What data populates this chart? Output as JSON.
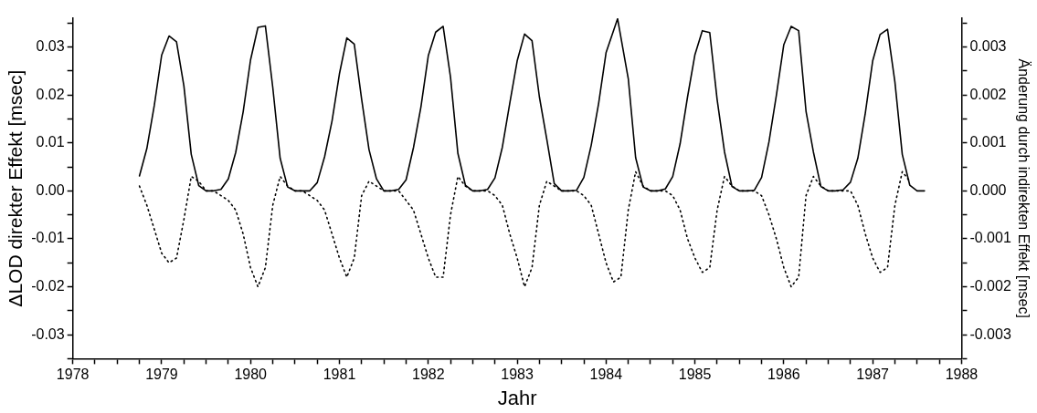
{
  "chart_data": {
    "type": "line",
    "xlabel": "Jahr",
    "ylabel": "ΔLOD direkter Effekt [msec]",
    "y2label": "Änderung durch indirekten Effekt [msec]",
    "marker": "none",
    "xlim": [
      1978,
      1988
    ],
    "xticks": [
      1978,
      {
        "value": 1978.25,
        "label": null
      },
      {
        "value": 1978.5,
        "label": null
      },
      {
        "value": 1978.75,
        "label": null
      },
      1979,
      {
        "value": 1979.25,
        "label": null
      },
      {
        "value": 1979.5,
        "label": null
      },
      {
        "value": 1979.75,
        "label": null
      },
      1980,
      {
        "value": 1980.25,
        "label": null
      },
      {
        "value": 1980.5,
        "label": null
      },
      {
        "value": 1980.75,
        "label": null
      },
      1981,
      {
        "value": 1981.25,
        "label": null
      },
      {
        "value": 1981.5,
        "label": null
      },
      {
        "value": 1981.75,
        "label": null
      },
      1982,
      {
        "value": 1982.25,
        "label": null
      },
      {
        "value": 1982.5,
        "label": null
      },
      {
        "value": 1982.75,
        "label": null
      },
      1983,
      {
        "value": 1983.25,
        "label": null
      },
      {
        "value": 1983.5,
        "label": null
      },
      {
        "value": 1983.75,
        "label": null
      },
      1984,
      {
        "value": 1984.25,
        "label": null
      },
      {
        "value": 1984.5,
        "label": null
      },
      {
        "value": 1984.75,
        "label": null
      },
      1985,
      {
        "value": 1985.25,
        "label": null
      },
      {
        "value": 1985.5,
        "label": null
      },
      {
        "value": 1985.75,
        "label": null
      },
      1986,
      {
        "value": 1986.25,
        "label": null
      },
      {
        "value": 1986.5,
        "label": null
      },
      {
        "value": 1986.75,
        "label": null
      },
      1987,
      {
        "value": 1987.25,
        "label": null
      },
      {
        "value": 1987.5,
        "label": null
      },
      {
        "value": 1987.75,
        "label": null
      },
      1988
    ],
    "ylim": [
      -0.035,
      0.036
    ],
    "yticks": [
      {
        "value": -0.035,
        "label": null
      },
      -0.03,
      {
        "value": -0.025,
        "label": null
      },
      -0.02,
      {
        "value": -0.015,
        "label": null
      },
      -0.01,
      {
        "value": -0.005,
        "label": null
      },
      {
        "value": 0,
        "label": "0.00"
      },
      {
        "value": 0.005,
        "label": null
      },
      0.01,
      {
        "value": 0.015,
        "label": null
      },
      0.02,
      {
        "value": 0.025,
        "label": null
      },
      0.03,
      {
        "value": 0.035,
        "label": null
      }
    ],
    "y2lim": [
      -0.0035,
      0.0036
    ],
    "y2ticks": [
      {
        "value": -0.0035,
        "label": null
      },
      -0.003,
      {
        "value": -0.0025,
        "label": null
      },
      -0.002,
      {
        "value": -0.0015,
        "label": null
      },
      -0.001,
      {
        "value": -0.0005,
        "label": null
      },
      {
        "value": 0,
        "label": "0.000"
      },
      {
        "value": 0.0005,
        "label": null
      },
      0.001,
      {
        "value": 0.0015,
        "label": null
      },
      0.002,
      {
        "value": 0.0025,
        "label": null
      },
      0.003,
      {
        "value": 0.0035,
        "label": null
      }
    ],
    "series": [
      {
        "color": "#000000",
        "line_style": "solid",
        "x": [
          1978.75,
          1978.833,
          1978.917,
          1979,
          1979.083,
          1979.167,
          1979.25,
          1979.333,
          1979.417,
          1979.5,
          1979.583,
          1979.667,
          1979.75,
          1979.833,
          1979.917,
          1980,
          1980.083,
          1980.167,
          1980.25,
          1980.333,
          1980.417,
          1980.5,
          1980.583,
          1980.667,
          1980.75,
          1980.833,
          1980.917,
          1981,
          1981.083,
          1981.167,
          1981.25,
          1981.333,
          1981.417,
          1981.5,
          1981.583,
          1981.667,
          1981.75,
          1981.833,
          1981.917,
          1982,
          1982.083,
          1982.167,
          1982.25,
          1982.333,
          1982.417,
          1982.5,
          1982.583,
          1982.667,
          1982.75,
          1982.833,
          1982.917,
          1983,
          1983.083,
          1983.167,
          1983.25,
          1983.333,
          1983.417,
          1983.5,
          1983.583,
          1983.667,
          1983.75,
          1983.833,
          1983.917,
          1984,
          1984.13,
          1984.25,
          1984.333,
          1984.417,
          1984.5,
          1984.583,
          1984.667,
          1984.75,
          1984.833,
          1984.917,
          1985,
          1985.083,
          1985.167,
          1985.25,
          1985.333,
          1985.417,
          1985.5,
          1985.583,
          1985.667,
          1985.75,
          1985.833,
          1985.917,
          1986,
          1986.083,
          1986.167,
          1986.25,
          1986.333,
          1986.417,
          1986.5,
          1986.583,
          1986.667,
          1986.75,
          1986.833,
          1986.917,
          1987,
          1987.083,
          1987.167,
          1987.25,
          1987.333,
          1987.417,
          1987.5,
          1987.583
        ],
        "values": [
          0.0031,
          0.0088,
          0.0178,
          0.0283,
          0.0323,
          0.0311,
          0.0219,
          0.0076,
          0.0011,
          0,
          0,
          0.0003,
          0.0025,
          0.008,
          0.0165,
          0.0273,
          0.0341,
          0.0344,
          0.0216,
          0.0068,
          0.0008,
          0,
          0,
          0,
          0.0017,
          0.0071,
          0.0146,
          0.0244,
          0.0319,
          0.0306,
          0.0191,
          0.0086,
          0.0025,
          0,
          0,
          0.0003,
          0.0023,
          0.009,
          0.0175,
          0.0282,
          0.0331,
          0.0343,
          0.0237,
          0.0078,
          0.0012,
          0,
          0,
          0.0003,
          0.0027,
          0.0091,
          0.0183,
          0.0271,
          0.0327,
          0.0313,
          0.0196,
          0.0108,
          0.0015,
          0,
          0,
          0.0001,
          0.0028,
          0.0095,
          0.0183,
          0.0288,
          0.0359,
          0.0234,
          0.0069,
          0.0008,
          0,
          0,
          0.0004,
          0.003,
          0.0098,
          0.0196,
          0.0284,
          0.0334,
          0.033,
          0.019,
          0.0081,
          0.0009,
          0,
          0,
          0.0001,
          0.0028,
          0.0102,
          0.02,
          0.0305,
          0.0343,
          0.0334,
          0.0166,
          0.0081,
          0.0009,
          0,
          0,
          0.0002,
          0.0018,
          0.0068,
          0.0162,
          0.0271,
          0.0326,
          0.0337,
          0.0227,
          0.0076,
          0.0012,
          0,
          0
        ]
      },
      {
        "color": "#000000",
        "line_style": "dotted",
        "axis": "y2",
        "x": [
          1978.75,
          1978.833,
          1978.917,
          1979,
          1979.083,
          1979.167,
          1979.25,
          1979.333,
          1979.417,
          1979.5,
          1979.583,
          1979.667,
          1979.75,
          1979.833,
          1979.917,
          1980,
          1980.083,
          1980.167,
          1980.25,
          1980.333,
          1980.417,
          1980.5,
          1980.583,
          1980.667,
          1980.75,
          1980.833,
          1980.917,
          1981,
          1981.083,
          1981.167,
          1981.25,
          1981.333,
          1981.417,
          1981.5,
          1981.583,
          1981.667,
          1981.75,
          1981.833,
          1981.917,
          1982,
          1982.083,
          1982.167,
          1982.25,
          1982.333,
          1982.417,
          1982.5,
          1982.583,
          1982.667,
          1982.75,
          1982.833,
          1982.917,
          1983,
          1983.083,
          1983.167,
          1983.25,
          1983.333,
          1983.417,
          1983.5,
          1983.583,
          1983.667,
          1983.75,
          1983.833,
          1983.917,
          1984,
          1984.083,
          1984.167,
          1984.25,
          1984.333,
          1984.417,
          1984.5,
          1984.583,
          1984.667,
          1984.75,
          1984.833,
          1984.917,
          1985,
          1985.083,
          1985.167,
          1985.25,
          1985.333,
          1985.417,
          1985.5,
          1985.583,
          1985.667,
          1985.75,
          1985.833,
          1985.917,
          1986,
          1986.083,
          1986.167,
          1986.25,
          1986.333,
          1986.417,
          1986.5,
          1986.583,
          1986.667,
          1986.75,
          1986.833,
          1986.917,
          1987,
          1987.083,
          1987.167,
          1987.25,
          1987.333,
          1987.417
        ],
        "values": [
          0.0001,
          -0.0003,
          -0.0008,
          -0.0013,
          -0.0015,
          -0.0014,
          -0.0006,
          0.0003,
          0.0002,
          0,
          0,
          -0.0001,
          -0.0002,
          -0.0004,
          -0.0009,
          -0.0016,
          -0.002,
          -0.0016,
          -0.0003,
          0.0003,
          0.0001,
          0,
          0,
          -0.0001,
          -0.0002,
          -0.0004,
          -0.0009,
          -0.0014,
          -0.0018,
          -0.0014,
          -0.0001,
          0.0002,
          0.0001,
          0,
          0,
          0,
          -0.0002,
          -0.0004,
          -0.0009,
          -0.0014,
          -0.0018,
          -0.0018,
          -0.0005,
          0.0003,
          0.0001,
          0,
          0,
          0,
          -0.0001,
          -0.0003,
          -0.0009,
          -0.0014,
          -0.002,
          -0.0016,
          -0.0003,
          0.0002,
          0.0001,
          0,
          0,
          0,
          -0.0001,
          -0.0003,
          -0.0009,
          -0.0015,
          -0.0019,
          -0.0018,
          -0.0004,
          0.0004,
          0.0001,
          0,
          0,
          0,
          -0.0001,
          -0.0004,
          -0.001,
          -0.0014,
          -0.0017,
          -0.0016,
          -0.0004,
          0.0003,
          0.0001,
          0,
          0,
          0,
          -0.0001,
          -0.0005,
          -0.001,
          -0.0016,
          -0.002,
          -0.0018,
          -0.0001,
          0.0003,
          0.0001,
          0,
          0,
          0,
          0,
          -0.0003,
          -0.0009,
          -0.0014,
          -0.0017,
          -0.0016,
          -0.0003,
          0.0004,
          0.0002
        ]
      }
    ]
  }
}
